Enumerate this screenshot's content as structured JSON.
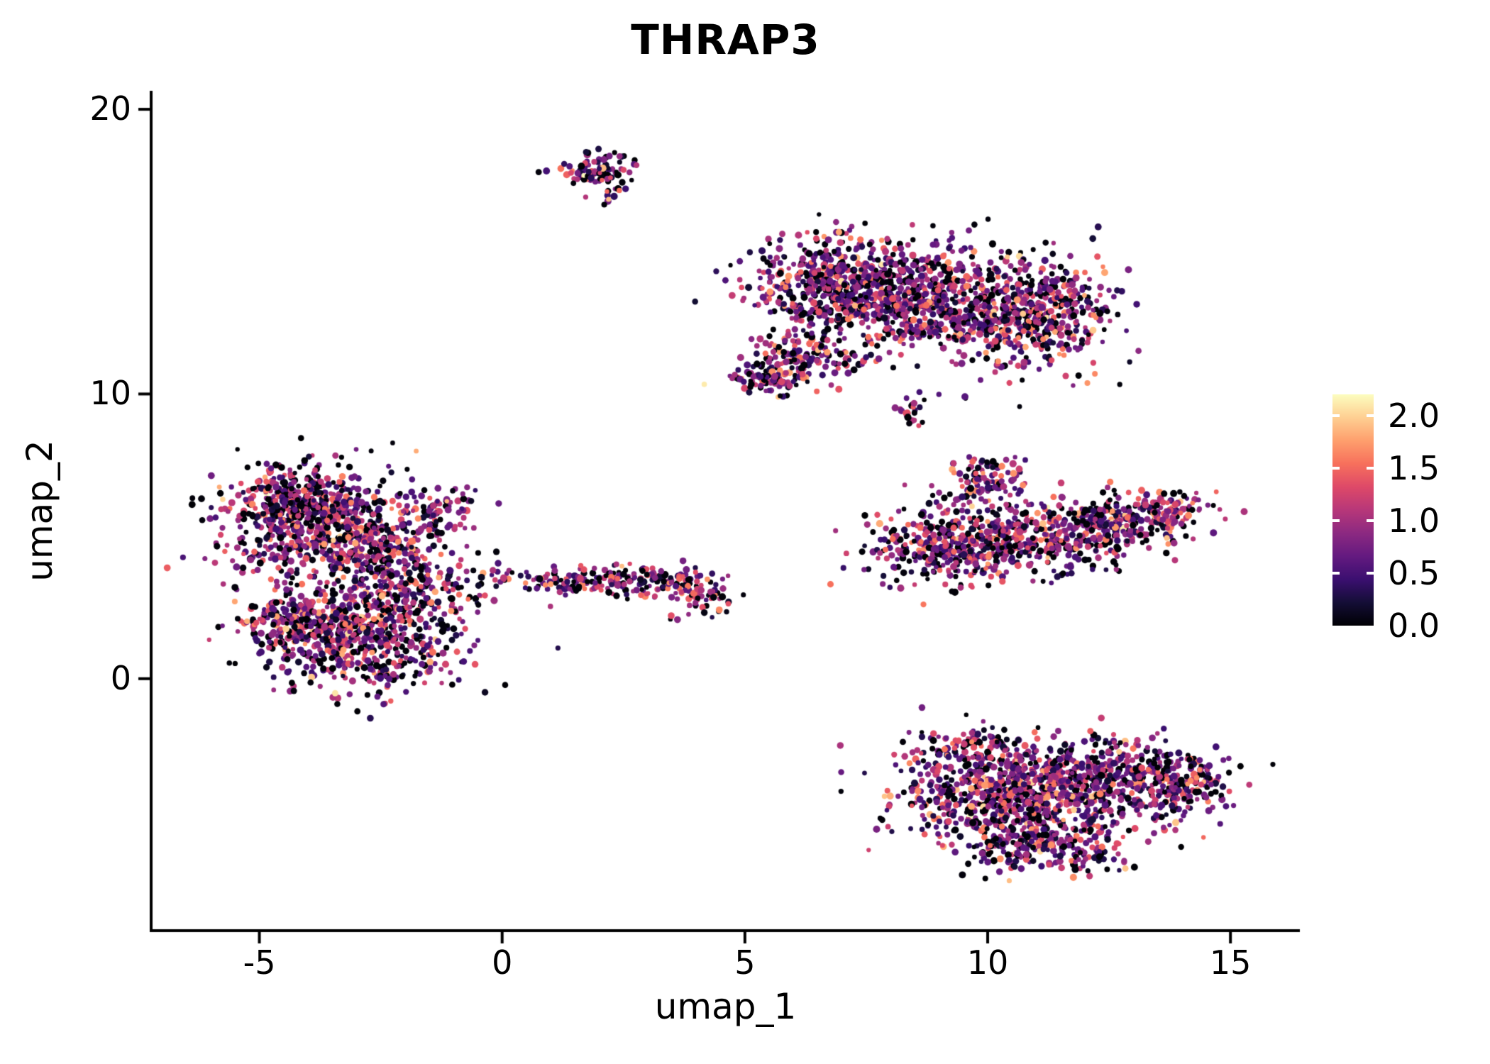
{
  "title": "THRAP3",
  "colors": {
    "background": "#ffffff",
    "axis": "#000000",
    "text": "#000000"
  },
  "axes": {
    "x": {
      "label": "umap_1",
      "ticks": [
        {
          "value": -5,
          "label": "-5"
        },
        {
          "value": 0,
          "label": "0"
        },
        {
          "value": 5,
          "label": "5"
        },
        {
          "value": 10,
          "label": "10"
        },
        {
          "value": 15,
          "label": "15"
        }
      ]
    },
    "y": {
      "label": "umap_2",
      "ticks": [
        {
          "value": 0,
          "label": "0"
        },
        {
          "value": 10,
          "label": "10"
        },
        {
          "value": 20,
          "label": "20"
        }
      ]
    }
  },
  "colorbar": {
    "min": 0,
    "max": 2.2,
    "ticks": [
      {
        "value": 0,
        "label": "0.0"
      },
      {
        "value": 0.5,
        "label": "0.5"
      },
      {
        "value": 1,
        "label": "1.0"
      },
      {
        "value": 1.5,
        "label": "1.5"
      },
      {
        "value": 2,
        "label": "2.0"
      }
    ]
  },
  "chart_data": {
    "type": "scatter",
    "title": "THRAP3",
    "xlabel": "umap_1",
    "ylabel": "umap_2",
    "xlim": [
      -7.2,
      16.4
    ],
    "ylim": [
      -8.8,
      20.6
    ],
    "grid": false,
    "legend_position": "right",
    "point_radius_px": 4,
    "seed": 42,
    "color_scale": {
      "name": "magma",
      "domain": [
        0,
        2.2
      ],
      "stops": [
        {
          "t": 0.0,
          "color": "#000004"
        },
        {
          "t": 0.1,
          "color": "#140e36"
        },
        {
          "t": 0.2,
          "color": "#3b0f70"
        },
        {
          "t": 0.3,
          "color": "#641a80"
        },
        {
          "t": 0.4,
          "color": "#8c2981"
        },
        {
          "t": 0.5,
          "color": "#b73779"
        },
        {
          "t": 0.6,
          "color": "#de4968"
        },
        {
          "t": 0.7,
          "color": "#f7705c"
        },
        {
          "t": 0.8,
          "color": "#fe9f6d"
        },
        {
          "t": 0.9,
          "color": "#fecf92"
        },
        {
          "t": 1.0,
          "color": "#fcfdbf"
        }
      ]
    },
    "value_distribution": {
      "zero_fraction": 0.2,
      "components": [
        {
          "weight": 0.78,
          "mean": 0.7,
          "sd": 0.38
        },
        {
          "weight": 0.22,
          "mean": 1.4,
          "sd": 0.3
        }
      ],
      "max": 2.2
    },
    "clusters": [
      {
        "name": "top-small",
        "blobs": [
          {
            "cx": 2.0,
            "cy": 17.9,
            "sx": 0.42,
            "sy": 0.3,
            "n": 85
          },
          {
            "cx": 2.3,
            "cy": 17.2,
            "sx": 0.18,
            "sy": 0.25,
            "n": 12
          }
        ]
      },
      {
        "name": "upper-right-large",
        "blobs": [
          {
            "cx": 7.2,
            "cy": 13.8,
            "sx": 1.05,
            "sy": 0.85,
            "n": 650
          },
          {
            "cx": 9.3,
            "cy": 13.1,
            "sx": 1.25,
            "sy": 1.0,
            "n": 620
          },
          {
            "cx": 11.2,
            "cy": 12.7,
            "sx": 0.75,
            "sy": 0.95,
            "n": 300
          },
          {
            "cx": 6.3,
            "cy": 11.4,
            "sx": 0.6,
            "sy": 0.5,
            "n": 130
          },
          {
            "cx": 5.5,
            "cy": 10.5,
            "sx": 0.45,
            "sy": 0.3,
            "n": 90
          },
          {
            "cx": 8.4,
            "cy": 9.4,
            "sx": 0.22,
            "sy": 0.28,
            "n": 22
          }
        ]
      },
      {
        "name": "left-large",
        "blobs": [
          {
            "cx": -3.6,
            "cy": 5.3,
            "sx": 1.1,
            "sy": 1.0,
            "n": 700
          },
          {
            "cx": -4.35,
            "cy": 6.3,
            "sx": 0.55,
            "sy": 0.55,
            "n": 200
          },
          {
            "cx": -3.0,
            "cy": 1.5,
            "sx": 1.05,
            "sy": 0.95,
            "n": 650
          },
          {
            "cx": -4.4,
            "cy": 2.1,
            "sx": 0.5,
            "sy": 0.5,
            "n": 130
          },
          {
            "cx": -2.2,
            "cy": 3.6,
            "sx": 0.7,
            "sy": 0.8,
            "n": 220
          },
          {
            "cx": -1.2,
            "cy": 5.9,
            "sx": 0.4,
            "sy": 0.4,
            "n": 70
          },
          {
            "cx": -1.0,
            "cy": 3.2,
            "sx": 0.6,
            "sy": 0.55,
            "n": 50
          }
        ]
      },
      {
        "name": "middle-band",
        "blobs": [
          {
            "cx": 1.2,
            "cy": 3.4,
            "sx": 0.45,
            "sy": 0.22,
            "n": 55
          },
          {
            "cx": 2.3,
            "cy": 3.5,
            "sx": 0.5,
            "sy": 0.28,
            "n": 75
          },
          {
            "cx": 3.3,
            "cy": 3.4,
            "sx": 0.4,
            "sy": 0.28,
            "n": 55
          },
          {
            "cx": 4.1,
            "cy": 3.0,
            "sx": 0.32,
            "sy": 0.42,
            "n": 60
          },
          {
            "cx": 0.2,
            "cy": 3.6,
            "sx": 0.3,
            "sy": 0.25,
            "n": 12
          },
          {
            "cx": 3.6,
            "cy": 2.1,
            "sx": 0.12,
            "sy": 0.12,
            "n": 4
          }
        ]
      },
      {
        "name": "mid-right",
        "blobs": [
          {
            "cx": 9.2,
            "cy": 4.6,
            "sx": 0.85,
            "sy": 0.65,
            "n": 300
          },
          {
            "cx": 11.0,
            "cy": 5.0,
            "sx": 1.15,
            "sy": 0.6,
            "n": 380
          },
          {
            "cx": 12.9,
            "cy": 5.6,
            "sx": 0.75,
            "sy": 0.5,
            "n": 220
          },
          {
            "cx": 9.9,
            "cy": 6.9,
            "sx": 0.45,
            "sy": 0.55,
            "n": 110
          },
          {
            "cx": 13.9,
            "cy": 5.9,
            "sx": 0.3,
            "sy": 0.3,
            "n": 35
          }
        ]
      },
      {
        "name": "bottom-right",
        "blobs": [
          {
            "cx": 10.2,
            "cy": -4.2,
            "sx": 1.05,
            "sy": 0.95,
            "n": 600
          },
          {
            "cx": 12.2,
            "cy": -3.6,
            "sx": 1.05,
            "sy": 0.8,
            "n": 520
          },
          {
            "cx": 13.9,
            "cy": -3.7,
            "sx": 0.55,
            "sy": 0.6,
            "n": 170
          },
          {
            "cx": 11.4,
            "cy": -5.9,
            "sx": 0.9,
            "sy": 0.5,
            "n": 220
          },
          {
            "cx": 9.6,
            "cy": -2.4,
            "sx": 0.5,
            "sy": 0.4,
            "n": 100
          }
        ]
      }
    ]
  }
}
